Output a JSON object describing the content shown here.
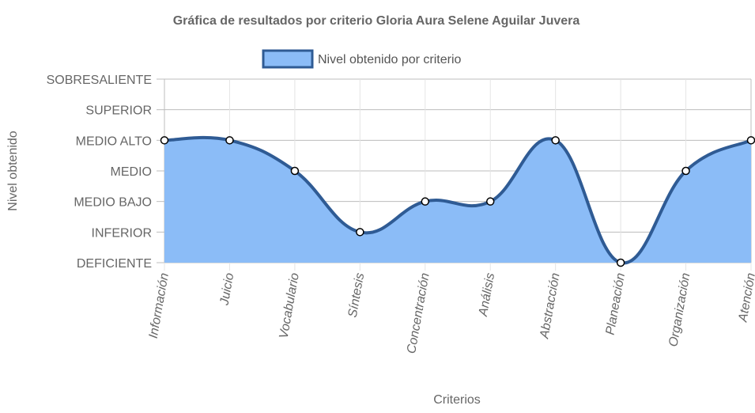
{
  "chart_data": {
    "type": "area",
    "title": "Gráfica de resultados por criterio Gloria Aura Selene Aguilar Juvera",
    "xlabel": "Criterios",
    "ylabel": "Nivel obtenido",
    "y_levels": [
      "DEFICIENTE",
      "INFERIOR",
      "MEDIO BAJO",
      "MEDIO",
      "MEDIO ALTO",
      "SUPERIOR",
      "SOBRESALIENTE"
    ],
    "ylim": [
      0,
      6
    ],
    "categories": [
      "Información",
      "Juicio",
      "Vocabulario",
      "Síntesis",
      "Concentración",
      "Análisis",
      "Abstracción",
      "Planeación",
      "Organización",
      "Atención"
    ],
    "series": [
      {
        "name": "Nivel obtenido por criterio",
        "values": [
          4,
          4,
          3,
          1,
          2,
          2,
          4,
          0,
          3,
          4
        ],
        "fill_color": "#8bbcf7",
        "line_color": "#2f5b94"
      }
    ],
    "legend_position": "top",
    "grid": true
  }
}
